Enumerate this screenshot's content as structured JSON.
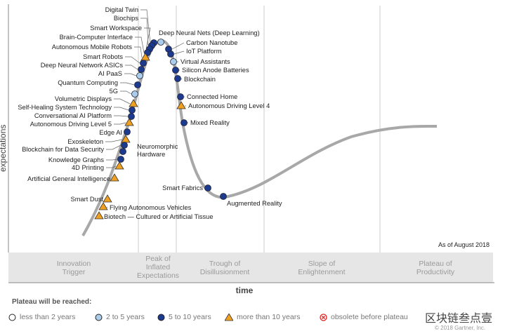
{
  "axis": {
    "y_label": "expectations",
    "x_label": "time"
  },
  "as_of": "As of August 2018",
  "phases": [
    {
      "lines": [
        "Innovation",
        "Trigger"
      ]
    },
    {
      "lines": [
        "Peak of",
        "Inflated",
        "Expectations"
      ]
    },
    {
      "lines": [
        "Trough of",
        "Disillusionment"
      ]
    },
    {
      "lines": [
        "Slope of",
        "Enlightenment"
      ]
    },
    {
      "lines": [
        "Plateau of",
        "Productivity"
      ]
    }
  ],
  "legend": {
    "title": "Plateau will be reached:",
    "items": [
      {
        "label": "less than 2 years",
        "marker": "hollow-circle"
      },
      {
        "label": "2 to 5 years",
        "marker": "light-circle"
      },
      {
        "label": "5 to 10 years",
        "marker": "dark-circle"
      },
      {
        "label": "more than 10 years",
        "marker": "triangle"
      },
      {
        "label": "obsolete before plateau",
        "marker": "x-circle"
      }
    ]
  },
  "colors": {
    "dark": "#1c3a8e",
    "light": "#a9cdeb",
    "triangle": "#f0a020",
    "curve": "#a8a8a8",
    "obsolete": "#e02020"
  },
  "watermark": "区块链叁点壹",
  "copyright": "© 2018 Gartner, Inc.",
  "technologies": [
    {
      "name": "Digital Twin",
      "plateau": "5 to 10 years"
    },
    {
      "name": "Biochips",
      "plateau": "5 to 10 years"
    },
    {
      "name": "Smart Workspace",
      "plateau": "5 to 10 years"
    },
    {
      "name": "Brain-Computer Interface",
      "plateau": "5 to 10 years"
    },
    {
      "name": "Autonomous Mobile Robots",
      "plateau": "more than 10 years"
    },
    {
      "name": "Smart Robots",
      "plateau": "5 to 10 years"
    },
    {
      "name": "Deep Neural Network ASICs",
      "plateau": "5 to 10 years"
    },
    {
      "name": "AI PaaS",
      "plateau": "2 to 5 years"
    },
    {
      "name": "Quantum Computing",
      "plateau": "5 to 10 years"
    },
    {
      "name": "5G",
      "plateau": "2 to 5 years"
    },
    {
      "name": "Volumetric Displays",
      "plateau": "more than 10 years"
    },
    {
      "name": "Self-Healing System Technology",
      "plateau": "5 to 10 years"
    },
    {
      "name": "Conversational AI Platform",
      "plateau": "5 to 10 years"
    },
    {
      "name": "Autonomous Driving Level 5",
      "plateau": "more than 10 years"
    },
    {
      "name": "Edge AI",
      "plateau": "5 to 10 years"
    },
    {
      "name": "Exoskeleton",
      "plateau": "more than 10 years"
    },
    {
      "name": "Blockchain for Data Security",
      "plateau": "5 to 10 years"
    },
    {
      "name": "Knowledge Graphs",
      "plateau": "5 to 10 years"
    },
    {
      "name": "4D Printing",
      "plateau": "more than 10 years"
    },
    {
      "name": "Artificial General Intelligence",
      "plateau": "more than 10 years"
    },
    {
      "name": "Smart Dust",
      "plateau": "more than 10 years"
    },
    {
      "name": "Flying Autonomous Vehicles",
      "plateau": "more than 10 years"
    },
    {
      "name": "Biotech — Cultured or Artificial Tissue",
      "plateau": "more than 10 years"
    },
    {
      "name": "Neuromorphic Hardware",
      "plateau": "5 to 10 years"
    },
    {
      "name": "Deep Neural Nets (Deep Learning)",
      "plateau": "2 to 5 years"
    },
    {
      "name": "Carbon Nanotube",
      "plateau": "5 to 10 years"
    },
    {
      "name": "IoT Platform",
      "plateau": "5 to 10 years"
    },
    {
      "name": "Virtual Assistants",
      "plateau": "2 to 5 years"
    },
    {
      "name": "Silicon Anode Batteries",
      "plateau": "5 to 10 years"
    },
    {
      "name": "Blockchain",
      "plateau": "5 to 10 years"
    },
    {
      "name": "Connected Home",
      "plateau": "5 to 10 years"
    },
    {
      "name": "Autonomous Driving Level 4",
      "plateau": "more than 10 years"
    },
    {
      "name": "Mixed Reality",
      "plateau": "5 to 10 years"
    },
    {
      "name": "Smart Fabrics",
      "plateau": "5 to 10 years"
    },
    {
      "name": "Augmented Reality",
      "plateau": "5 to 10 years"
    }
  ]
}
